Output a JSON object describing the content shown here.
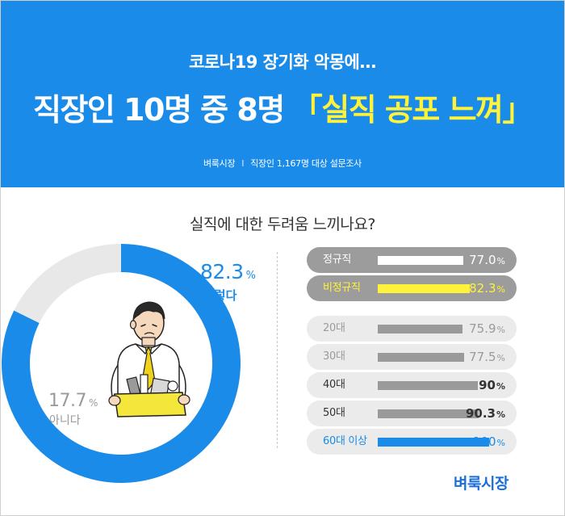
{
  "header": {
    "subtitle": "코로나19 장기화 악몽에…",
    "title_main": "직장인 10명 중 8명",
    "title_quote": "「실직 공포 느껴」",
    "source_brand": "벼룩시장",
    "source_sep": "I",
    "source_desc": "직장인 1,167명 대상 설문조사"
  },
  "chart_data": [
    {
      "type": "pie",
      "title": "실직에 대한 두려움 느끼나요?",
      "slices": [
        {
          "label": "그렇다",
          "value": 82.3,
          "value_text": "82.3",
          "unit": "%",
          "color": "#1a8be8"
        },
        {
          "label": "아니다",
          "value": 17.7,
          "value_text": "17.7",
          "unit": "%",
          "color": "#e8e8e8"
        }
      ]
    },
    {
      "type": "bar",
      "orientation": "horizontal",
      "xlim": [
        0,
        100
      ],
      "rows": [
        {
          "label": "정규직",
          "value": 77.0,
          "value_text": "77.0",
          "unit": "%",
          "style": "gray"
        },
        {
          "label": "비정규직",
          "value": 82.3,
          "value_text": "82.3",
          "unit": "%",
          "style": "gray-highlight"
        },
        {
          "label": "20대",
          "value": 75.9,
          "value_text": "75.9",
          "unit": "%",
          "style": "light"
        },
        {
          "label": "30대",
          "value": 77.5,
          "value_text": "77.5",
          "unit": "%",
          "style": "light"
        },
        {
          "label": "40대",
          "value": 90,
          "value_text": "90",
          "unit": "%",
          "style": "light-bold"
        },
        {
          "label": "50대",
          "value": 90.3,
          "value_text": "90.3",
          "unit": "%",
          "style": "light-bold"
        },
        {
          "label": "60대 이상",
          "value": 100,
          "value_text": "100",
          "unit": "%",
          "style": "light-blue"
        }
      ]
    }
  ],
  "logo": "벼룩시장",
  "colors": {
    "brand_blue": "#1a8be8",
    "highlight_yellow": "#fff23a",
    "donut_gray": "#e8e8e8",
    "bar_dark_bg": "#9c9c9c",
    "bar_light_bg": "#ebebeb"
  },
  "illustration": {
    "icon": "worried-office-worker-holding-box-icon"
  }
}
